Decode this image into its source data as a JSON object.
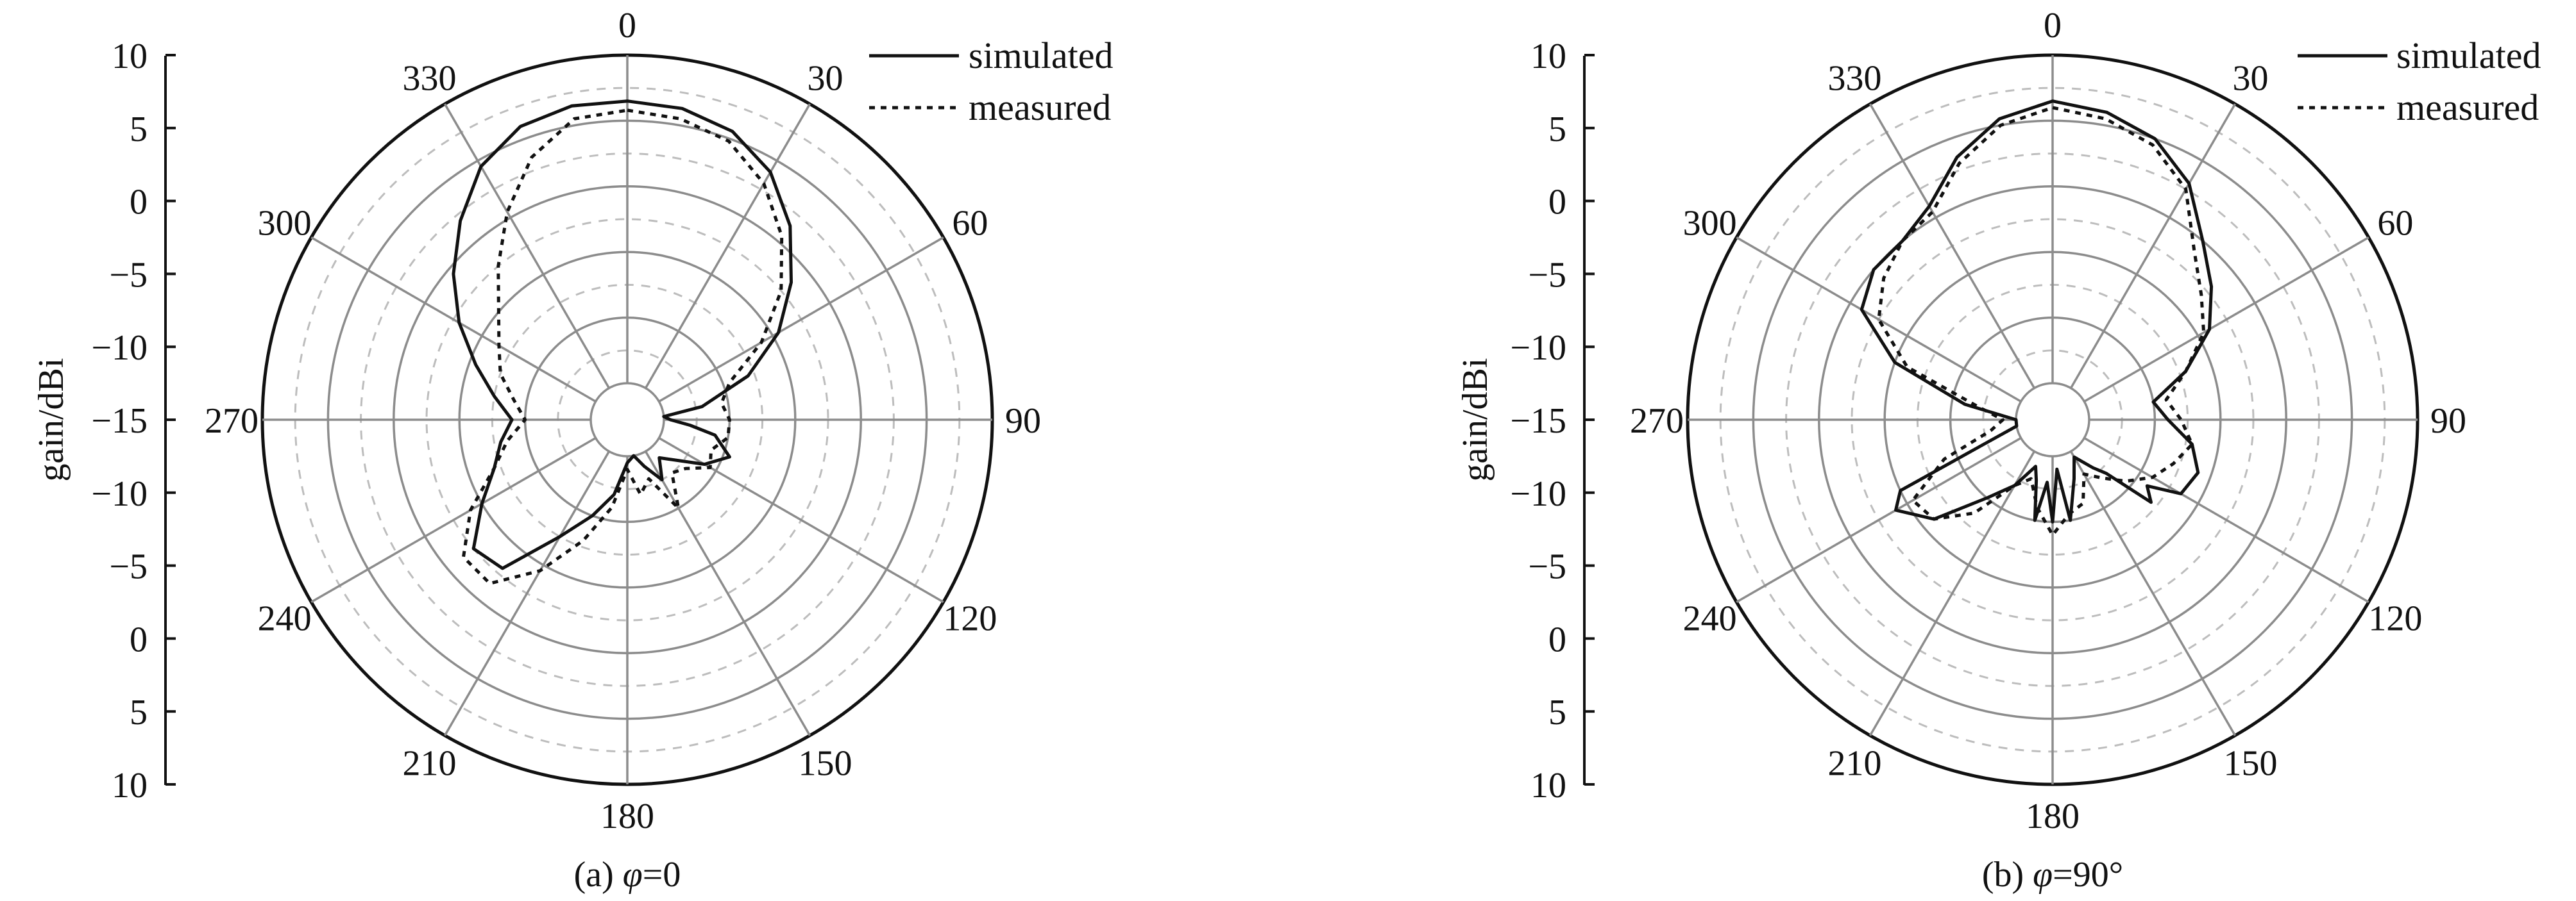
{
  "chart_data": [
    {
      "type": "polar",
      "caption": "(a) φ=0",
      "caption_prefix": "(a) ",
      "caption_symbol": "φ",
      "caption_suffix": "=0",
      "ylabel": "gain/dBi",
      "r_ticks": [
        "10",
        "5",
        "0",
        "−5",
        "−10",
        "−15",
        "−10",
        "−5",
        "0",
        "5",
        "10"
      ],
      "angle_labels": [
        "0",
        "30",
        "60",
        "90",
        "120",
        "150",
        "180",
        "210",
        "240",
        "270",
        "300",
        "330"
      ],
      "rlim_db": [
        -15,
        10
      ],
      "grid": true,
      "legend": "top-right",
      "series": [
        {
          "name": "simulated",
          "style": "solid",
          "angle_deg": [
            0,
            10,
            20,
            30,
            40,
            50,
            60,
            70,
            80,
            85,
            90,
            95,
            100,
            110,
            120,
            130,
            140,
            150,
            160,
            170,
            180,
            190,
            200,
            210,
            220,
            230,
            240,
            250,
            260,
            270,
            280,
            290,
            300,
            310,
            320,
            330,
            340,
            350
          ],
          "gain_dbi": [
            6.5,
            6.3,
            5.6,
            4,
            1.5,
            -1.5,
            -4.5,
            -8,
            -12,
            -15,
            -14.5,
            -13,
            -11,
            -9.5,
            -11,
            -13,
            -14,
            -12.5,
            -14,
            -15,
            -14.5,
            -12,
            -10,
            -7.5,
            -3,
            -2.5,
            -5,
            -7,
            -8,
            -9,
            -7.5,
            -5.5,
            -3,
            -0.5,
            2,
            4.5,
            6,
            6.5
          ]
        },
        {
          "name": "measured",
          "style": "dotted",
          "angle_deg": [
            0,
            10,
            20,
            30,
            40,
            50,
            60,
            70,
            80,
            90,
            100,
            110,
            120,
            130,
            140,
            150,
            160,
            170,
            180,
            190,
            200,
            210,
            220,
            230,
            240,
            250,
            260,
            270,
            280,
            290,
            300,
            310,
            320,
            330,
            340,
            350
          ],
          "gain_dbi": [
            5.8,
            5.5,
            4.8,
            3,
            0.5,
            -2.5,
            -6,
            -9.5,
            -10.5,
            -10,
            -10,
            -11,
            -10.5,
            -12,
            -12.5,
            -10,
            -13,
            -12,
            -14,
            -11,
            -8,
            -4.5,
            -1.5,
            -1.5,
            -4,
            -7,
            -8.5,
            -10,
            -9,
            -7.5,
            -6.5,
            -5,
            -2.5,
            0.5,
            3.5,
            5.5
          ]
        }
      ]
    },
    {
      "type": "polar",
      "caption": "(b) φ=90°",
      "caption_prefix": "(b) ",
      "caption_symbol": "φ",
      "caption_suffix": "=90°",
      "ylabel": "gain/dBi",
      "r_ticks": [
        "10",
        "5",
        "0",
        "−5",
        "−10",
        "−15",
        "−10",
        "−5",
        "0",
        "5",
        "10"
      ],
      "angle_labels": [
        "0",
        "30",
        "60",
        "90",
        "120",
        "150",
        "180",
        "210",
        "240",
        "270",
        "300",
        "330"
      ],
      "rlim_db": [
        -15,
        10
      ],
      "grid": true,
      "legend": "top-right",
      "series": [
        {
          "name": "simulated",
          "style": "solid",
          "angle_deg": [
            0,
            10,
            20,
            30,
            40,
            50,
            60,
            70,
            80,
            90,
            100,
            110,
            120,
            125,
            130,
            135,
            140,
            150,
            160,
            170,
            175,
            180,
            185,
            190,
            195,
            200,
            210,
            220,
            230,
            240,
            245,
            250,
            260,
            270,
            280,
            290,
            300,
            310,
            320,
            330,
            340,
            350
          ],
          "gain_dbi": [
            6.5,
            6,
            5,
            3,
            0,
            -2,
            -4,
            -7,
            -10,
            -9,
            -7,
            -6,
            -6.5,
            -9,
            -8,
            -12,
            -13,
            -14.5,
            -13,
            -10,
            -14,
            -10,
            -13,
            -10,
            -13,
            -14,
            -12,
            -10,
            -6,
            -4,
            -5,
            -12,
            -15,
            -15,
            -11,
            -5,
            -1,
            0,
            0,
            1,
            3.5,
            5.5
          ]
        },
        {
          "name": "measured",
          "style": "dotted",
          "angle_deg": [
            0,
            10,
            20,
            30,
            40,
            50,
            60,
            70,
            80,
            90,
            100,
            110,
            120,
            130,
            140,
            150,
            160,
            170,
            180,
            190,
            200,
            210,
            220,
            230,
            240,
            250,
            260,
            270,
            280,
            290,
            300,
            310,
            320,
            330,
            340,
            350
          ],
          "gain_dbi": [
            6,
            5.5,
            4.5,
            2.5,
            -1,
            -3,
            -4.5,
            -7,
            -9,
            -8,
            -7,
            -8,
            -9,
            -10.5,
            -12,
            -13,
            -11,
            -10.5,
            -9,
            -11,
            -13,
            -12,
            -8.5,
            -6,
            -5.5,
            -9,
            -13,
            -14,
            -12,
            -6,
            -2.5,
            -1,
            0,
            0.5,
            3,
            5
          ]
        }
      ]
    }
  ]
}
